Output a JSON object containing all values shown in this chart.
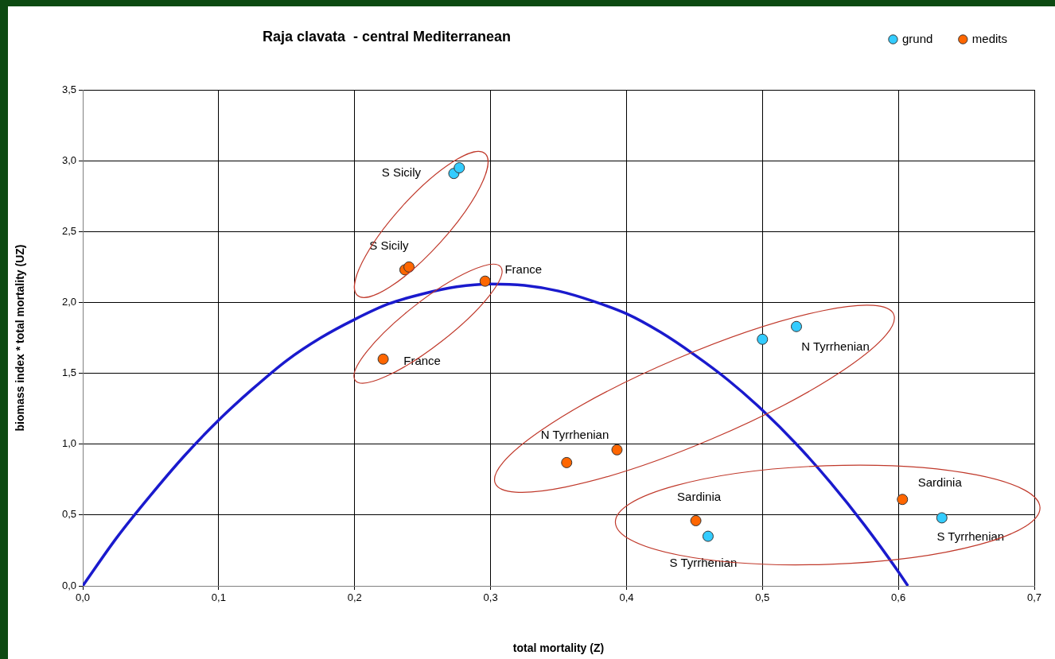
{
  "chart_data": {
    "type": "scatter",
    "title": "Raja clavata  - central Mediterranean",
    "xlabel": "total mortality (Z)",
    "ylabel": "biomass index * total mortality (UZ)",
    "xlim": [
      0,
      0.7
    ],
    "ylim": [
      0,
      3.5
    ],
    "xticks": [
      {
        "value": 0,
        "label": "0,0"
      },
      {
        "value": 0.1,
        "label": "0,1"
      },
      {
        "value": 0.2,
        "label": "0,2"
      },
      {
        "value": 0.3,
        "label": "0,3"
      },
      {
        "value": 0.4,
        "label": "0,4"
      },
      {
        "value": 0.5,
        "label": "0,5"
      },
      {
        "value": 0.6,
        "label": "0,6"
      },
      {
        "value": 0.7,
        "label": "0,7"
      }
    ],
    "yticks": [
      {
        "value": 0,
        "label": "0,0"
      },
      {
        "value": 0.5,
        "label": "0,5"
      },
      {
        "value": 1,
        "label": "1,0"
      },
      {
        "value": 1.5,
        "label": "1,5"
      },
      {
        "value": 2,
        "label": "2,0"
      },
      {
        "value": 2.5,
        "label": "2,5"
      },
      {
        "value": 3,
        "label": "3,0"
      },
      {
        "value": 3.5,
        "label": "3,5"
      }
    ],
    "grid": true,
    "legend": "top right",
    "marker": "circle",
    "series": [
      {
        "name": "grund",
        "color": "#33ccff",
        "x": [
          0.273,
          0.277,
          0.5,
          0.525,
          0.46,
          0.632
        ],
        "values": [
          2.91,
          2.95,
          1.74,
          1.83,
          0.35,
          0.48
        ]
      },
      {
        "name": "medits",
        "color": "#ff6600",
        "x": [
          0.237,
          0.24,
          0.296,
          0.221,
          0.356,
          0.393,
          0.451,
          0.603
        ],
        "values": [
          2.23,
          2.25,
          2.15,
          1.6,
          0.87,
          0.96,
          0.46,
          0.61
        ]
      },
      {
        "type": "line",
        "color": "#1a1acd",
        "marker": "none",
        "line_style": "solid",
        "x": [
          0,
          0.025,
          0.05,
          0.075,
          0.1,
          0.125,
          0.15,
          0.175,
          0.2,
          0.225,
          0.25,
          0.275,
          0.3,
          0.325,
          0.35,
          0.375,
          0.4,
          0.425,
          0.45,
          0.475,
          0.5,
          0.525,
          0.55,
          0.575,
          0.6,
          0.607
        ],
        "values": [
          0,
          0.34,
          0.64,
          0.92,
          1.17,
          1.39,
          1.59,
          1.75,
          1.88,
          1.99,
          2.06,
          2.11,
          2.13,
          2.12,
          2.08,
          2.01,
          1.92,
          1.79,
          1.63,
          1.45,
          1.24,
          1,
          0.73,
          0.43,
          0.1,
          0
        ]
      }
    ],
    "annotations": [
      {
        "text": "S Sicily",
        "x": 0.273,
        "y": 2.91
      },
      {
        "text": "S Sicily",
        "x": 0.237,
        "y": 2.23
      },
      {
        "text": "France",
        "x": 0.296,
        "y": 2.15
      },
      {
        "text": "France",
        "x": 0.221,
        "y": 1.6
      },
      {
        "text": "N Tyrrhenian",
        "x": 0.525,
        "y": 1.83
      },
      {
        "text": "N Tyrrhenian",
        "x": 0.393,
        "y": 0.96
      },
      {
        "text": "Sardinia",
        "x": 0.451,
        "y": 0.46
      },
      {
        "text": "S Tyrrhenian",
        "x": 0.46,
        "y": 0.35
      },
      {
        "text": "Sardinia",
        "x": 0.603,
        "y": 0.61
      },
      {
        "text": "S Tyrrhenian",
        "x": 0.632,
        "y": 0.48
      }
    ]
  }
}
